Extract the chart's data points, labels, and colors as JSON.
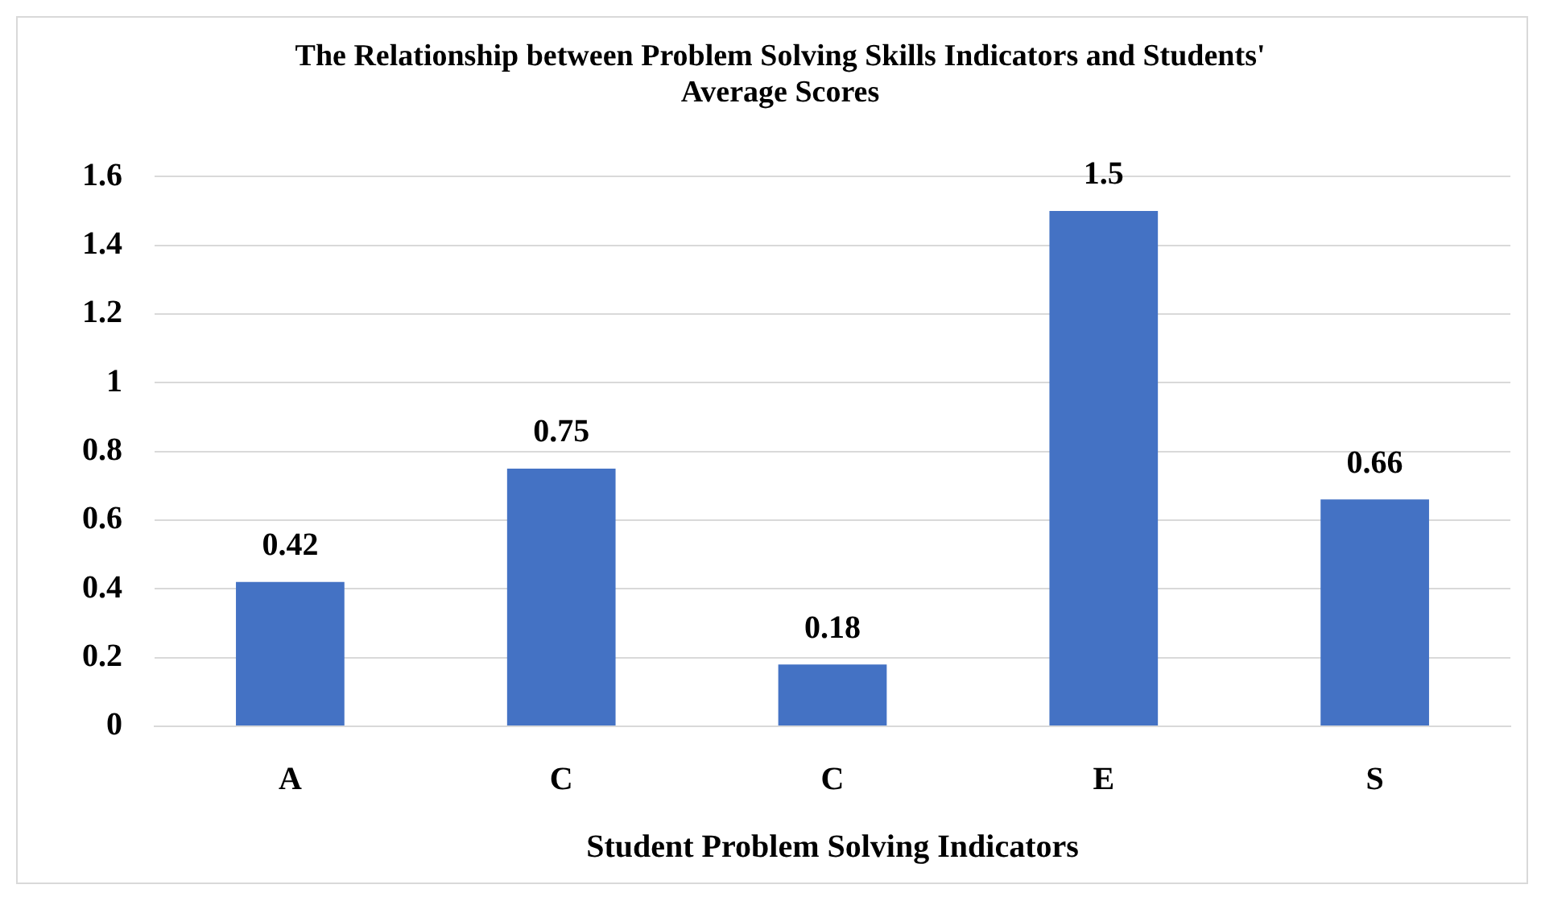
{
  "chart_data": {
    "type": "bar",
    "title": "The Relationship between Problem Solving Skills Indicators and Students' Average Scores",
    "xlabel": "Student Problem Solving Indicators",
    "categories": [
      "A",
      "C",
      "C",
      "E",
      "S"
    ],
    "values": [
      0.42,
      0.75,
      0.18,
      1.5,
      0.66
    ],
    "color": "#4472c4",
    "ylim": [
      0,
      1.6
    ],
    "yticks": [
      0,
      0.2,
      0.4,
      0.6,
      0.8,
      1,
      1.2,
      1.4,
      1.6
    ],
    "grid": "y",
    "legend": false,
    "data_labels": true
  }
}
